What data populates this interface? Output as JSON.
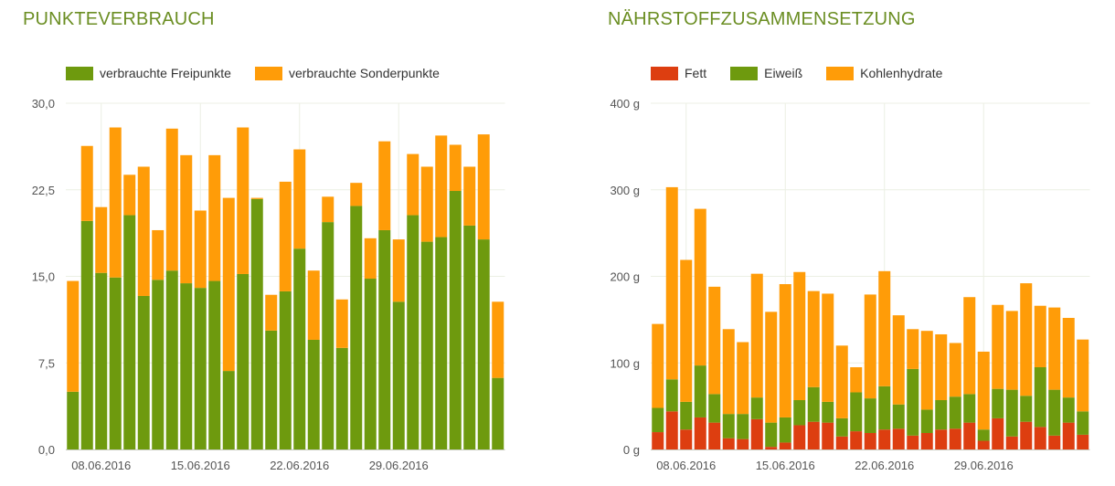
{
  "colors": {
    "title": "#6b8e23",
    "freipunkte": "#6e9a0e",
    "sonderpunkte": "#ff9c08",
    "fett": "#dd3e10",
    "eiweiss": "#6e9a0e",
    "kohlenhydrate": "#ff9c08",
    "grid": "#ecefe4"
  },
  "chart_data": [
    {
      "type": "bar",
      "stacked": true,
      "title": "PUNKTEVERBRAUCH",
      "xlabel": "",
      "ylabel": "",
      "ylim": [
        0,
        30
      ],
      "y_ticks": [
        "0,0",
        "7,5",
        "15,0",
        "22,5",
        "30,0"
      ],
      "x_tick_labels": [
        "08.06.2016",
        "15.06.2016",
        "22.06.2016",
        "29.06.2016"
      ],
      "x_tick_label_index": [
        2,
        9,
        16,
        23
      ],
      "gridline_index": [
        2.5,
        9.5,
        16.5,
        23.5
      ],
      "grid": true,
      "legend_position": "top-left",
      "series": [
        {
          "name": "verbrauchte Freipunkte",
          "values": [
            5.0,
            19.8,
            15.3,
            14.9,
            20.3,
            13.3,
            14.7,
            15.5,
            14.4,
            14.0,
            14.6,
            6.8,
            15.2,
            21.7,
            10.3,
            13.7,
            17.4,
            9.5,
            19.7,
            8.8,
            21.1,
            14.8,
            19.0,
            12.8,
            20.3,
            18.0,
            18.4,
            22.4,
            19.4,
            18.2,
            6.2
          ]
        },
        {
          "name": "verbrauchte Sonderpunkte",
          "values": [
            9.6,
            6.5,
            5.7,
            13.0,
            3.5,
            11.2,
            4.3,
            12.3,
            11.1,
            6.7,
            10.9,
            15.0,
            12.7,
            0.1,
            3.1,
            9.5,
            8.6,
            6.0,
            2.2,
            4.2,
            2.0,
            3.5,
            7.7,
            5.4,
            5.3,
            6.5,
            8.8,
            4.0,
            5.1,
            9.1,
            6.6
          ]
        }
      ]
    },
    {
      "type": "bar",
      "stacked": true,
      "title": "NÄHRSTOFFZUSAMMENSETZUNG",
      "xlabel": "",
      "ylabel": "",
      "ylim": [
        0,
        400
      ],
      "y_ticks": [
        "0 g",
        "100 g",
        "200 g",
        "300 g",
        "400 g"
      ],
      "x_tick_labels": [
        "08.06.2016",
        "15.06.2016",
        "22.06.2016",
        "29.06.2016"
      ],
      "x_tick_label_index": [
        2,
        9,
        16,
        23
      ],
      "gridline_index": [
        2.5,
        9.5,
        16.5,
        23.5
      ],
      "grid": true,
      "legend_position": "top-left",
      "series": [
        {
          "name": "Fett",
          "values": [
            20,
            44,
            23,
            37,
            31,
            13,
            12,
            35,
            3,
            8,
            28,
            32,
            31,
            15,
            21,
            19,
            23,
            24,
            16,
            19,
            23,
            24,
            31,
            10,
            36,
            15,
            32,
            26,
            16,
            31,
            17
          ]
        },
        {
          "name": "Eiweiß",
          "values": [
            28,
            37,
            32,
            60,
            33,
            28,
            29,
            25,
            28,
            29,
            29,
            40,
            24,
            21,
            45,
            40,
            50,
            28,
            77,
            27,
            34,
            37,
            33,
            13,
            34,
            54,
            30,
            69,
            53,
            29,
            27
          ]
        },
        {
          "name": "Kohlenhydrate",
          "values": [
            97,
            222,
            164,
            181,
            124,
            98,
            83,
            143,
            128,
            154,
            148,
            111,
            125,
            84,
            29,
            120,
            133,
            103,
            46,
            91,
            76,
            62,
            112,
            90,
            97,
            91,
            130,
            71,
            95,
            92,
            83
          ]
        }
      ]
    }
  ]
}
